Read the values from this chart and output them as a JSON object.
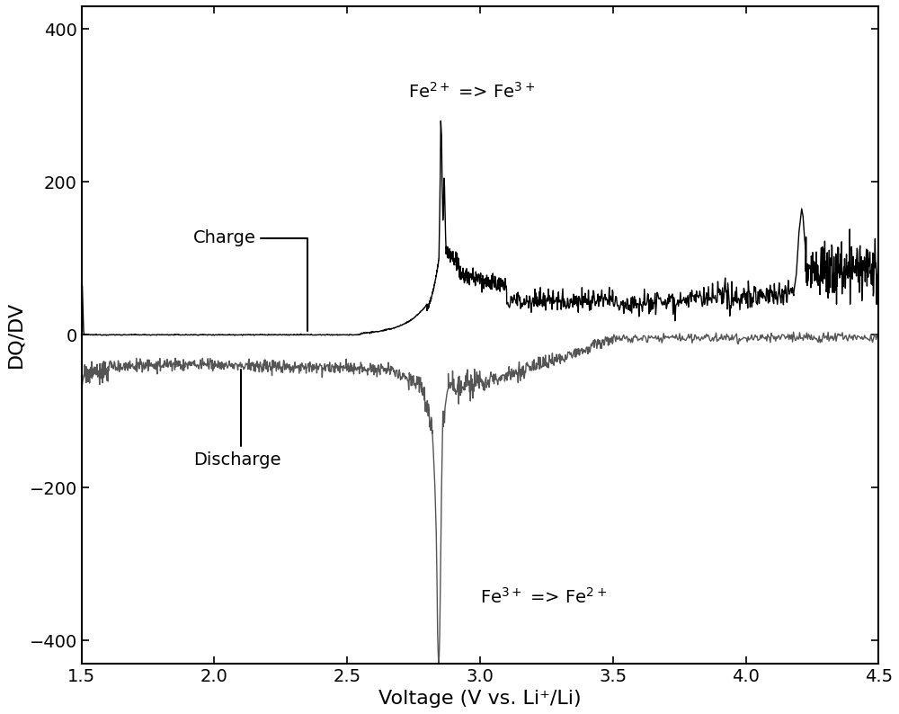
{
  "xlim": [
    1.5,
    4.5
  ],
  "ylim": [
    -430,
    430
  ],
  "xlabel": "Voltage (V vs. Li⁺/Li)",
  "ylabel": "DQ/DV",
  "charge_annotation": "Charge",
  "discharge_annotation": "Discharge",
  "fe2_to_fe3_label": "Fe$^{2+}$ => Fe$^{3+}$",
  "fe3_to_fe2_label": "Fe$^{3+}$ => Fe$^{2+}$",
  "charge_color": "#000000",
  "discharge_color": "#555555",
  "background_color": "#ffffff",
  "tick_fontsize": 14,
  "label_fontsize": 16,
  "annotation_fontsize": 14
}
